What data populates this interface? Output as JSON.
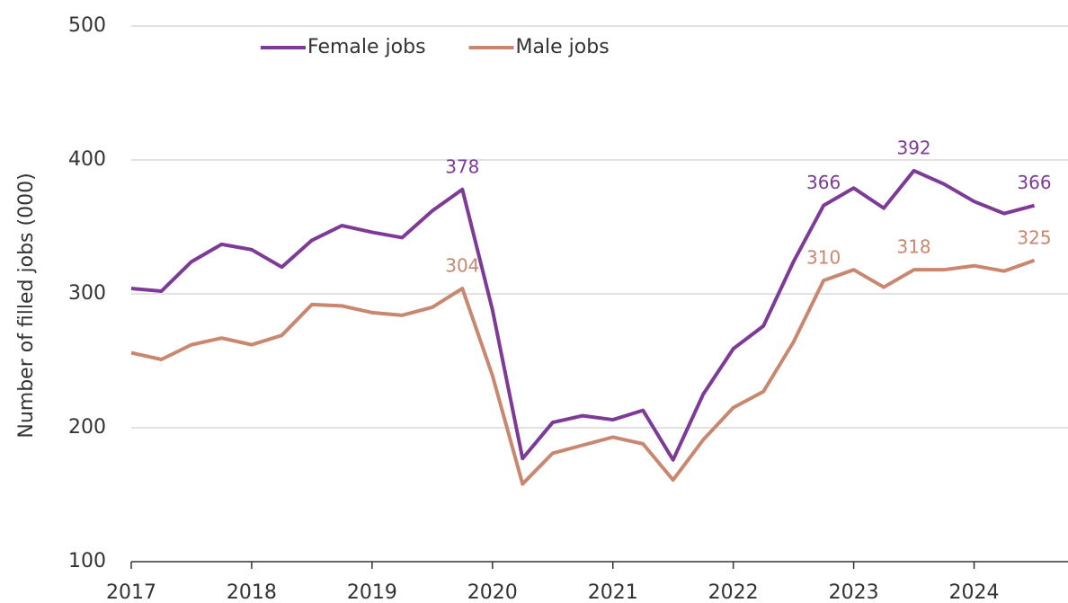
{
  "chart_data": {
    "type": "line",
    "y_label": "Number of filled jobs (000)",
    "x": [
      2017,
      2017.25,
      2017.5,
      2017.75,
      2018,
      2018.25,
      2018.5,
      2018.75,
      2019,
      2019.25,
      2019.5,
      2019.75,
      2020,
      2020.25,
      2020.5,
      2020.75,
      2021,
      2021.25,
      2021.5,
      2021.75,
      2022,
      2022.25,
      2022.5,
      2022.75,
      2023,
      2023.25,
      2023.5,
      2023.75,
      2024,
      2024.25,
      2024.5
    ],
    "xlim": [
      2017,
      2024.75
    ],
    "xticks": [
      2017,
      2018,
      2019,
      2020,
      2021,
      2022,
      2023,
      2024
    ],
    "ylim": [
      100,
      500
    ],
    "yticks": [
      100,
      200,
      300,
      400,
      500
    ],
    "grid": true,
    "legend": "top",
    "series": [
      {
        "name": "Female jobs",
        "color": "#7d3a96",
        "values": [
          304,
          302,
          324,
          337,
          333,
          320,
          340,
          351,
          346,
          342,
          362,
          378,
          288,
          177,
          204,
          209,
          206,
          213,
          176,
          225,
          259,
          276,
          324,
          366,
          379,
          364,
          392,
          382,
          369,
          360,
          366
        ],
        "value_labels": [
          null,
          null,
          null,
          null,
          null,
          null,
          null,
          null,
          null,
          null,
          null,
          "378",
          null,
          null,
          null,
          null,
          null,
          null,
          null,
          null,
          null,
          null,
          null,
          "366",
          null,
          null,
          "392",
          null,
          null,
          null,
          "366"
        ]
      },
      {
        "name": "Male jobs",
        "color": "#c8876e",
        "values": [
          256,
          251,
          262,
          267,
          262,
          269,
          292,
          291,
          286,
          284,
          290,
          304,
          239,
          158,
          181,
          187,
          193,
          188,
          161,
          191,
          215,
          227,
          264,
          310,
          318,
          305,
          318,
          318,
          321,
          317,
          325
        ],
        "value_labels": [
          null,
          null,
          null,
          null,
          null,
          null,
          null,
          null,
          null,
          null,
          null,
          "304",
          null,
          null,
          null,
          null,
          null,
          null,
          null,
          null,
          null,
          null,
          null,
          "310",
          null,
          null,
          "318",
          null,
          null,
          null,
          "325"
        ]
      }
    ]
  }
}
